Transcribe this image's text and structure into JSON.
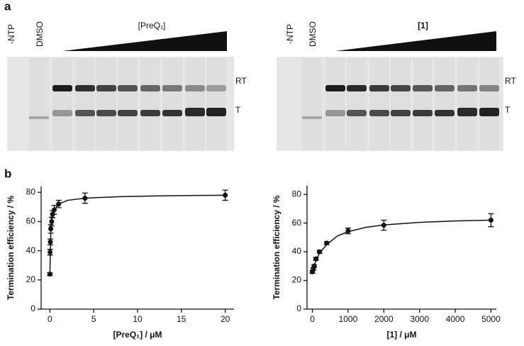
{
  "panels": [
    "a",
    "b"
  ],
  "gels": [
    {
      "lanes": [
        "-NTP",
        "DMSO"
      ],
      "ligand": "[PreQ₁]",
      "bands": [
        "RT",
        "T"
      ]
    },
    {
      "lanes": [
        "-NTP",
        "DMSO"
      ],
      "ligand": "[1]",
      "bands": [
        "RT",
        "T"
      ]
    }
  ],
  "chart_data": [
    {
      "type": "scatter",
      "x_label": "[PreQ₁] / μM",
      "y_label": "Termination efficiency  / %",
      "xlim": [
        -1,
        21
      ],
      "ylim": [
        0,
        84
      ],
      "xticks": [
        0,
        5,
        10,
        15,
        20
      ],
      "yticks": [
        0,
        20,
        40,
        60,
        80
      ],
      "series": [
        {
          "color": "#111111",
          "x": [
            0,
            0.02,
            0.05,
            0.1,
            0.2,
            0.3,
            0.5,
            1,
            4,
            20
          ],
          "values": [
            24,
            39,
            46,
            55,
            60,
            65,
            68,
            72,
            76,
            78
          ],
          "errors": [
            1,
            2,
            2,
            3,
            3,
            2.5,
            3,
            2.5,
            3.5,
            3.5
          ]
        }
      ],
      "fit": {
        "x": [
          0,
          0.1,
          0.25,
          0.5,
          1,
          2,
          4,
          8,
          12,
          16,
          20
        ],
        "values": [
          24,
          52,
          63,
          68,
          72,
          74.5,
          76,
          77,
          77.5,
          77.8,
          78
        ]
      }
    },
    {
      "type": "scatter",
      "x_label": "[1] / μM",
      "y_label": "Termination efficiency  / %",
      "xlim": [
        -150,
        5150
      ],
      "ylim": [
        0,
        86
      ],
      "xticks": [
        0,
        1000,
        2000,
        3000,
        4000,
        5000
      ],
      "yticks": [
        0,
        20,
        40,
        60,
        80
      ],
      "series": [
        {
          "color": "#111111",
          "x": [
            0,
            25,
            50,
            100,
            200,
            400,
            1000,
            2000,
            5000
          ],
          "values": [
            26,
            28,
            30,
            35,
            40,
            46,
            54.5,
            58.5,
            62
          ],
          "errors": [
            1,
            1,
            1,
            1,
            1,
            1,
            2,
            3.5,
            4.5
          ]
        }
      ],
      "fit": {
        "x": [
          0,
          100,
          200,
          400,
          700,
          1000,
          1500,
          2000,
          3000,
          4000,
          5000
        ],
        "values": [
          26,
          34,
          39,
          45,
          51,
          54,
          57,
          58.7,
          60.5,
          61.5,
          62
        ]
      }
    }
  ]
}
